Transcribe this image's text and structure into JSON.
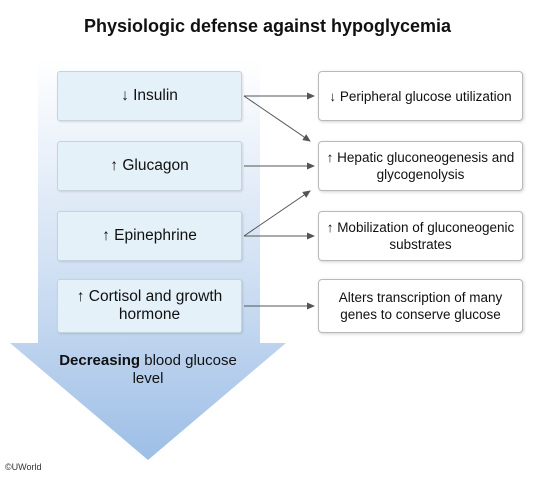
{
  "title": "Physiologic defense against hypoglycemia",
  "factors": [
    {
      "id": "insulin",
      "label": "↓ Insulin"
    },
    {
      "id": "glucagon",
      "label": "↑ Glucagon"
    },
    {
      "id": "epinephrine",
      "label": "↑ Epinephrine"
    },
    {
      "id": "cortisol",
      "label": "↑ Cortisol and growth hormone"
    }
  ],
  "effects": [
    {
      "id": "peripheral",
      "label": "↓ Peripheral glucose utilization"
    },
    {
      "id": "hepatic",
      "label": "↑ Hepatic gluconeogenesis and glycogenolysis"
    },
    {
      "id": "mobilization",
      "label": "↑ Mobilization of gluconeogenic substrates"
    },
    {
      "id": "transcription",
      "label": "Alters transcription of many genes to conserve glucose"
    }
  ],
  "connections": [
    {
      "from": "insulin",
      "to": "peripheral"
    },
    {
      "from": "insulin",
      "to": "hepatic"
    },
    {
      "from": "glucagon",
      "to": "hepatic"
    },
    {
      "from": "epinephrine",
      "to": "hepatic"
    },
    {
      "from": "epinephrine",
      "to": "mobilization"
    },
    {
      "from": "cortisol",
      "to": "transcription"
    }
  ],
  "arrow_caption": {
    "bold": "Decreasing",
    "rest": " blood glucose level"
  },
  "credit": "©UWorld",
  "colors": {
    "factor_fill": "#e4f1f8",
    "arrow_top": "#ffffff",
    "arrow_bottom": "#9dbee6",
    "connector": "#555555"
  }
}
